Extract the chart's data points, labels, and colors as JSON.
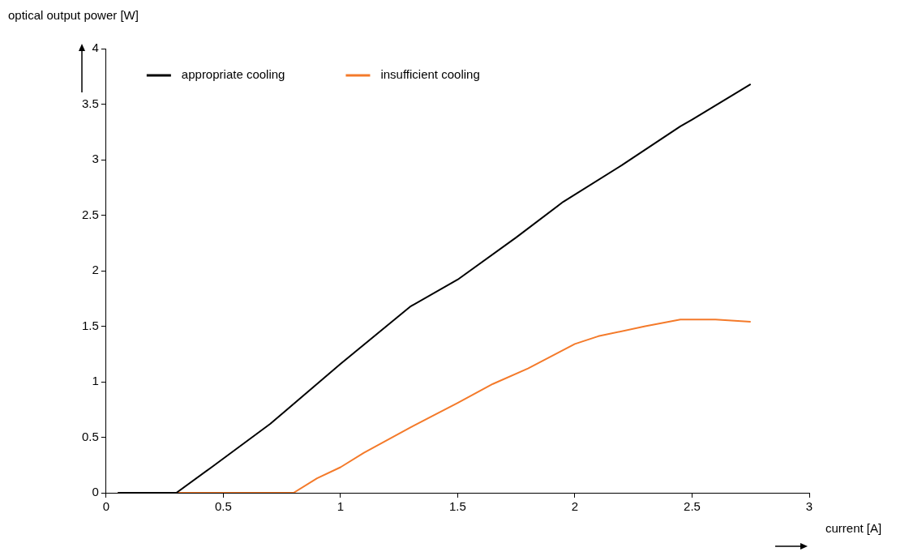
{
  "chart_data": {
    "type": "line",
    "xlabel": "current [A]",
    "ylabel": "optical output power [W]",
    "xlim": [
      0,
      3
    ],
    "xticks": [
      0,
      0.5,
      1,
      1.5,
      2,
      2.5,
      3
    ],
    "ylim": [
      0,
      4
    ],
    "yticks": [
      0,
      0.5,
      1,
      1.5,
      2,
      2.5,
      3,
      3.5,
      4
    ],
    "series": [
      {
        "name": "appropriate cooling",
        "color": "#000000",
        "x": [
          0.05,
          0.3,
          0.45,
          0.7,
          1,
          1.3,
          1.5,
          1.75,
          1.95,
          2.2,
          2.45,
          2.5,
          2.75
        ],
        "values": [
          0,
          0,
          0.23,
          0.62,
          1.16,
          1.68,
          1.92,
          2.3,
          2.62,
          2.95,
          3.3,
          3.36,
          3.68
        ]
      },
      {
        "name": "insufficient cooling",
        "color": "#f47a2a",
        "x": [
          0.05,
          0.8,
          0.9,
          1,
          1.1,
          1.3,
          1.5,
          1.65,
          1.8,
          2,
          2.1,
          2.3,
          2.45,
          2.6,
          2.75
        ],
        "values": [
          0,
          0,
          0.13,
          0.23,
          0.36,
          0.59,
          0.81,
          0.98,
          1.12,
          1.34,
          1.41,
          1.5,
          1.56,
          1.56,
          1.54
        ]
      }
    ],
    "grid": false,
    "legend": "top left",
    "marker": "none",
    "line_style": "solid"
  }
}
